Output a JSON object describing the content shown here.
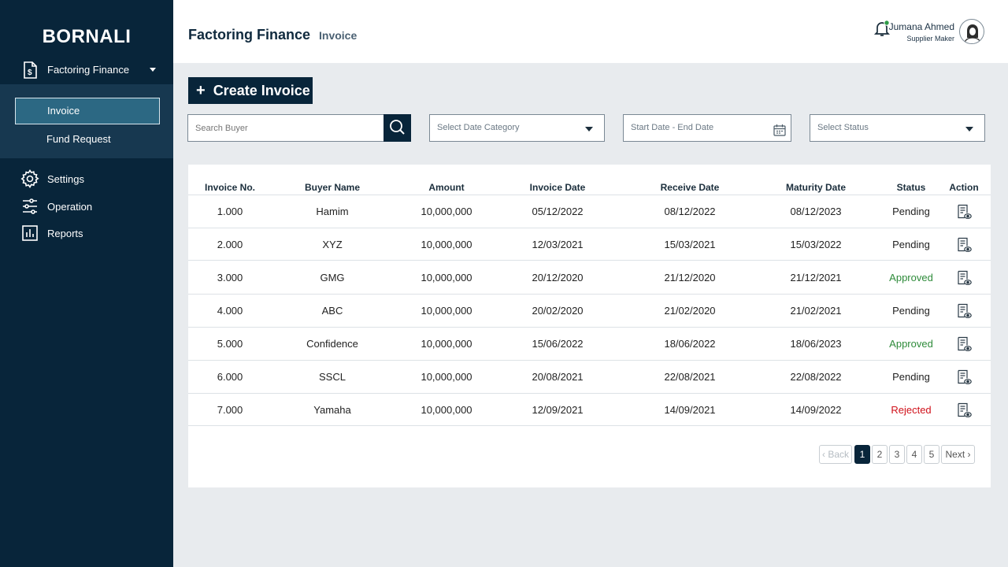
{
  "sidebar": {
    "brand": "BORNALI",
    "parent": {
      "label": "Factoring Finance",
      "icon": "document-dollar-icon"
    },
    "submenu": [
      {
        "label": "Invoice",
        "active": true
      },
      {
        "label": "Fund Request",
        "active": false
      }
    ],
    "items": [
      {
        "label": "Settings",
        "icon": "gear-icon"
      },
      {
        "label": "Operation",
        "icon": "sliders-icon"
      },
      {
        "label": "Reports",
        "icon": "bar-chart-icon"
      }
    ]
  },
  "header": {
    "title": "Factoring Finance",
    "crumb": "Invoice",
    "user_name": "Jumana Ahmed",
    "user_role": "Supplier Maker"
  },
  "toolbar": {
    "create_label": "Create Invoice",
    "search_placeholder": "Search Buyer",
    "date_category_placeholder": "Select Date Category",
    "date_range_placeholder": "Start Date - End Date",
    "status_placeholder": "Select Status"
  },
  "table": {
    "columns": [
      "Invoice No.",
      "Buyer Name",
      "Amount",
      "Invoice Date",
      "Receive Date",
      "Maturity Date",
      "Status",
      "Action"
    ],
    "rows": [
      {
        "no": "1.000",
        "buyer": "Hamim",
        "amount": "10,000,000",
        "invoice_date": "05/12/2022",
        "receive_date": "08/12/2022",
        "maturity_date": "08/12/2023",
        "status": "Pending"
      },
      {
        "no": "2.000",
        "buyer": "XYZ",
        "amount": "10,000,000",
        "invoice_date": "12/03/2021",
        "receive_date": "15/03/2021",
        "maturity_date": "15/03/2022",
        "status": "Pending"
      },
      {
        "no": "3.000",
        "buyer": "GMG",
        "amount": "10,000,000",
        "invoice_date": "20/12/2020",
        "receive_date": "21/12/2020",
        "maturity_date": "21/12/2021",
        "status": "Approved"
      },
      {
        "no": "4.000",
        "buyer": "ABC",
        "amount": "10,000,000",
        "invoice_date": "20/02/2020",
        "receive_date": "21/02/2020",
        "maturity_date": "21/02/2021",
        "status": "Pending"
      },
      {
        "no": "5.000",
        "buyer": "Confidence",
        "amount": "10,000,000",
        "invoice_date": "15/06/2022",
        "receive_date": "18/06/2022",
        "maturity_date": "18/06/2023",
        "status": "Approved"
      },
      {
        "no": "6.000",
        "buyer": "SSCL",
        "amount": "10,000,000",
        "invoice_date": "20/08/2021",
        "receive_date": "22/08/2021",
        "maturity_date": "22/08/2022",
        "status": "Pending"
      },
      {
        "no": "7.000",
        "buyer": "Yamaha",
        "amount": "10,000,000",
        "invoice_date": "12/09/2021",
        "receive_date": "14/09/2021",
        "maturity_date": "14/09/2022",
        "status": "Rejected"
      }
    ]
  },
  "pagination": {
    "back_label": "Back",
    "next_label": "Next",
    "pages": [
      "1",
      "2",
      "3",
      "4",
      "5"
    ],
    "current": "1"
  },
  "colors": {
    "sidebar_bg": "#08253a",
    "active_item": "#2c6883",
    "approved": "#2e8b3a",
    "rejected": "#d0111a",
    "notification_dot": "#2e9b47"
  }
}
